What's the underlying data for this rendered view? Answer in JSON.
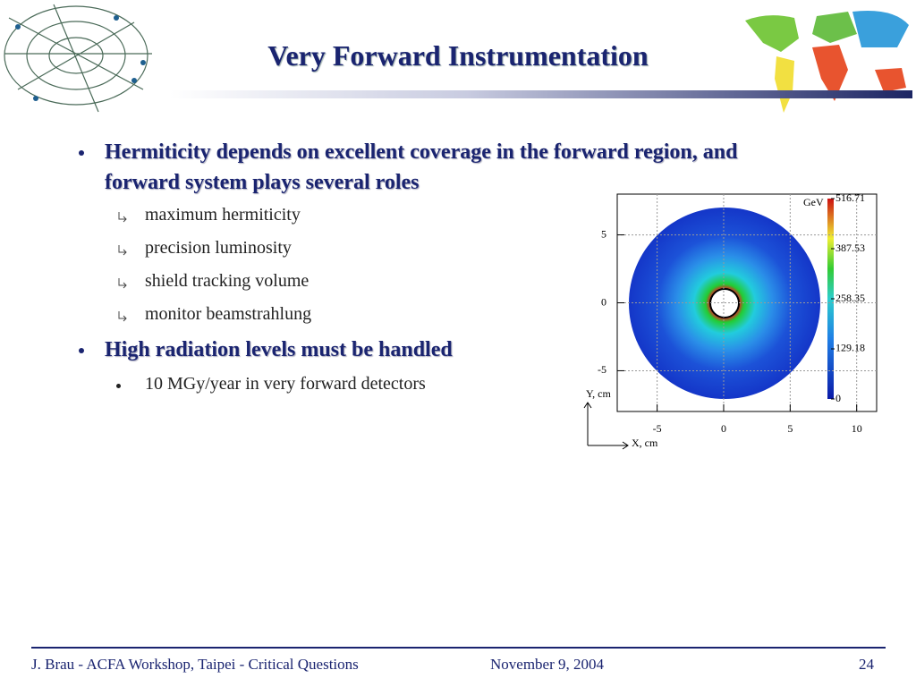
{
  "header": {
    "title": "Very Forward Instrumentation"
  },
  "bullets": [
    {
      "text": "Hermiticity depends on excellent coverage in the forward region, and forward system plays several roles",
      "sub": [
        "maximum hermiticity",
        "precision luminosity",
        "shield tracking volume",
        "monitor beamstrahlung"
      ]
    },
    {
      "text": "High radiation levels must be handled",
      "sub": [
        "10 MGy/year in very forward detectors"
      ]
    }
  ],
  "figure": {
    "x_label": "X, cm",
    "y_label": "Y, cm",
    "unit": "GeV",
    "xlim": [
      -8,
      11.5
    ],
    "ylim": [
      -8,
      8
    ],
    "xticks": [
      -5,
      0,
      5,
      10
    ],
    "yticks": [
      5,
      0,
      -5
    ],
    "clim": [
      0,
      516.71
    ],
    "cticks": [
      516.71,
      387.53,
      258.35,
      129.18,
      0
    ]
  },
  "footer": {
    "left": "J. Brau - ACFA Workshop, Taipei - Critical Questions",
    "center": "November 9, 2004",
    "page": "24"
  }
}
